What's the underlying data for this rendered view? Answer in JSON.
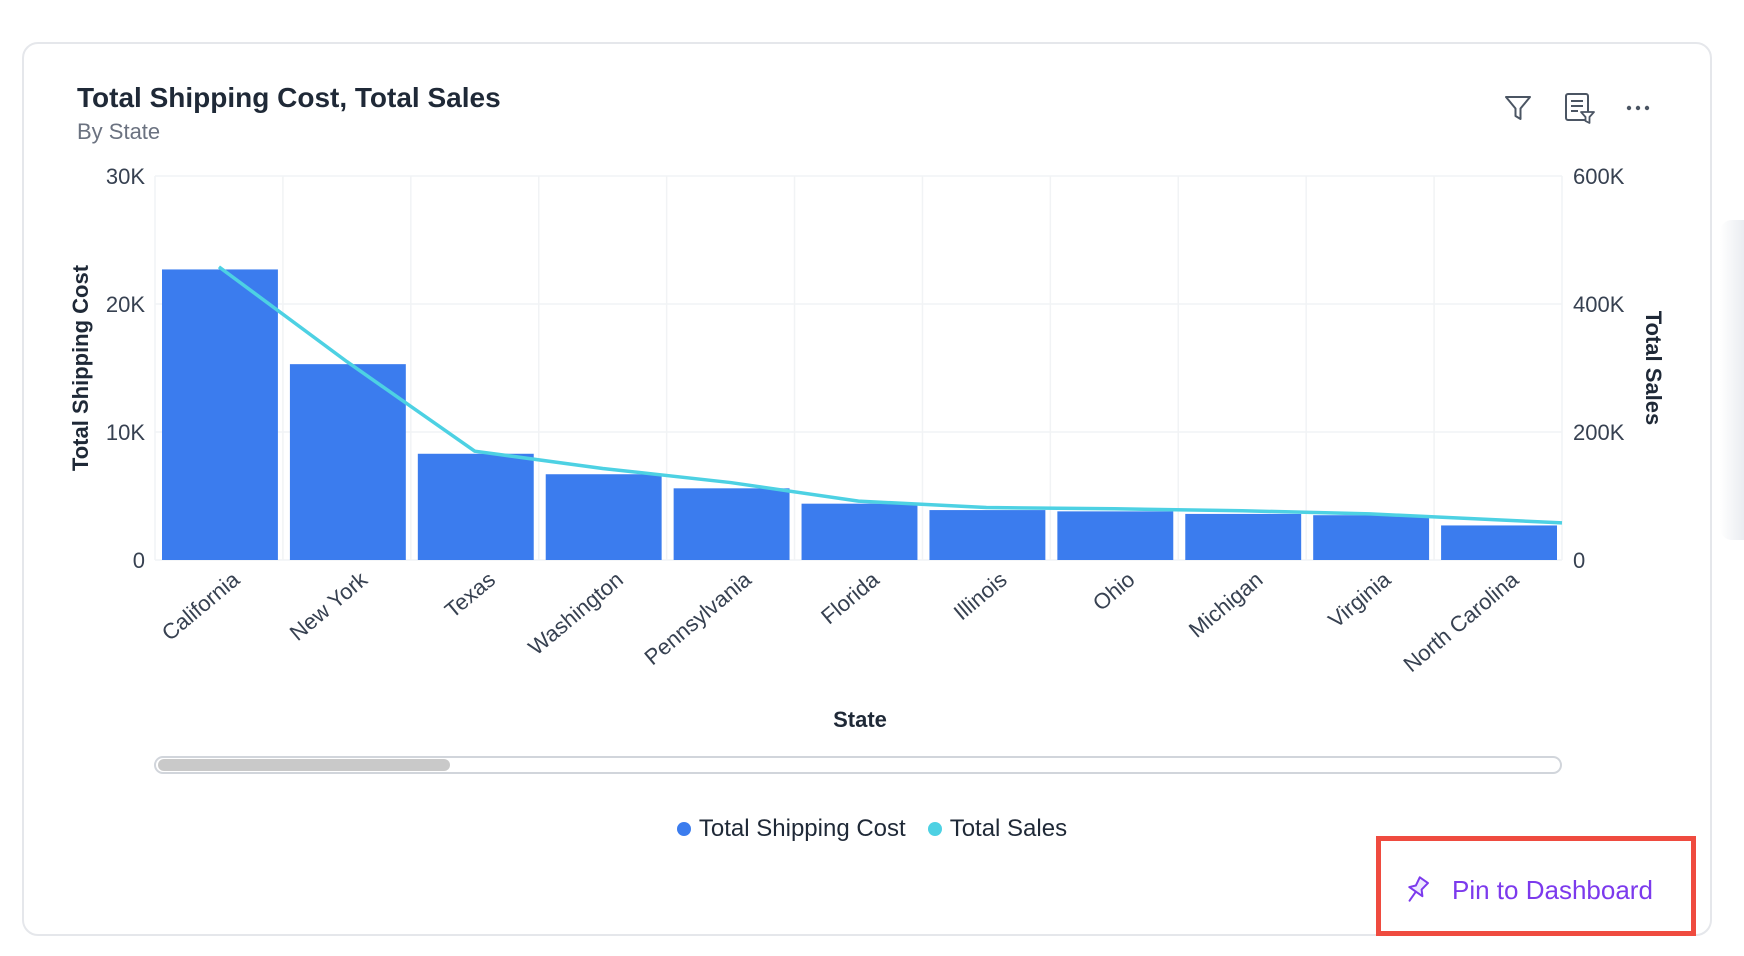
{
  "header": {
    "title": "Total Shipping Cost, Total Sales",
    "subtitle": "By State"
  },
  "toolbar": {
    "filter_icon": "filter-icon",
    "list_filter_icon": "list-filter-icon",
    "more_icon": "more-options-icon"
  },
  "chart_data": {
    "type": "bar",
    "title": "Total Shipping Cost, Total Sales",
    "subtitle": "By State",
    "xlabel": "State",
    "ylabel": "Total Shipping Cost",
    "y2label": "Total Sales",
    "categories": [
      "California",
      "New York",
      "Texas",
      "Washington",
      "Pennsylvania",
      "Florida",
      "Illinois",
      "Ohio",
      "Michigan",
      "Virginia",
      "North Carolina"
    ],
    "series": [
      {
        "name": "Total Shipping Cost",
        "type": "bar",
        "axis": "left",
        "color": "#3b7cee",
        "values": [
          22700,
          15300,
          8300,
          6700,
          5600,
          4400,
          3900,
          3800,
          3600,
          3500,
          2700
        ]
      },
      {
        "name": "Total Sales",
        "type": "line",
        "axis": "right",
        "color": "#4dd1e3",
        "values": [
          458000,
          310000,
          170000,
          143000,
          121000,
          92000,
          82000,
          80000,
          77000,
          72000,
          58000
        ]
      }
    ],
    "ylim": [
      0,
      30000
    ],
    "y2lim": [
      0,
      600000
    ],
    "yticks": [
      "0",
      "10K",
      "20K",
      "30K"
    ],
    "y2ticks": [
      "0",
      "200K",
      "400K",
      "600K"
    ],
    "grid": true,
    "legend": "bottom-center"
  },
  "scrollbar": {
    "position": 0
  },
  "actions": {
    "pin_label": "Pin to Dashboard",
    "pin_icon": "pin-icon"
  }
}
